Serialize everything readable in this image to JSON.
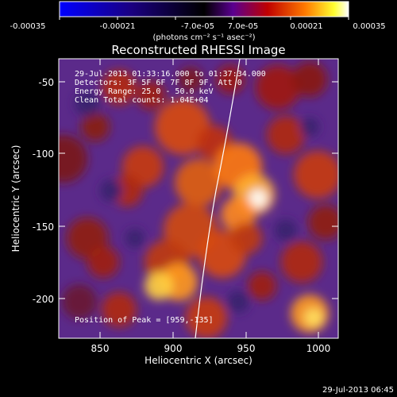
{
  "colorbar": {
    "tick_labels": [
      "-0.00035",
      "-0.00021",
      "-7.0e-05",
      "7.0e-05",
      "0.00021",
      "0.00035"
    ],
    "units_label": "(photons cm⁻² s⁻¹ asec⁻²)",
    "colors": [
      "#0000ff",
      "#1a0080",
      "#000000",
      "#5a0090",
      "#c00000",
      "#ff7a00",
      "#ffff30",
      "#ffffff"
    ]
  },
  "image": {
    "title": "Reconstructed RHESSI Image",
    "info_lines": [
      "29-Jul-2013 01:33:16.000 to 01:37:34.000",
      "Detectors: 3F 5F 6F 7F 8F 9F, Att 0",
      "Energy Range: 25.0 - 50.0 keV",
      "Clean    Total counts: 1.04E+04"
    ],
    "peak_label": "Position of Peak = [959,-135]",
    "colors": {
      "background": "#5b2a8a",
      "limb": "#ffffff"
    }
  },
  "axes": {
    "xlabel": "Heliocentric X (arcsec)",
    "ylabel": "Heliocentric Y (arcsec)",
    "xticks": [
      "850",
      "900",
      "950",
      "1000"
    ],
    "yticks": [
      "-50",
      "-100",
      "-150",
      "-200"
    ]
  },
  "footer": {
    "timestamp": "29-Jul-2013 06:45"
  }
}
